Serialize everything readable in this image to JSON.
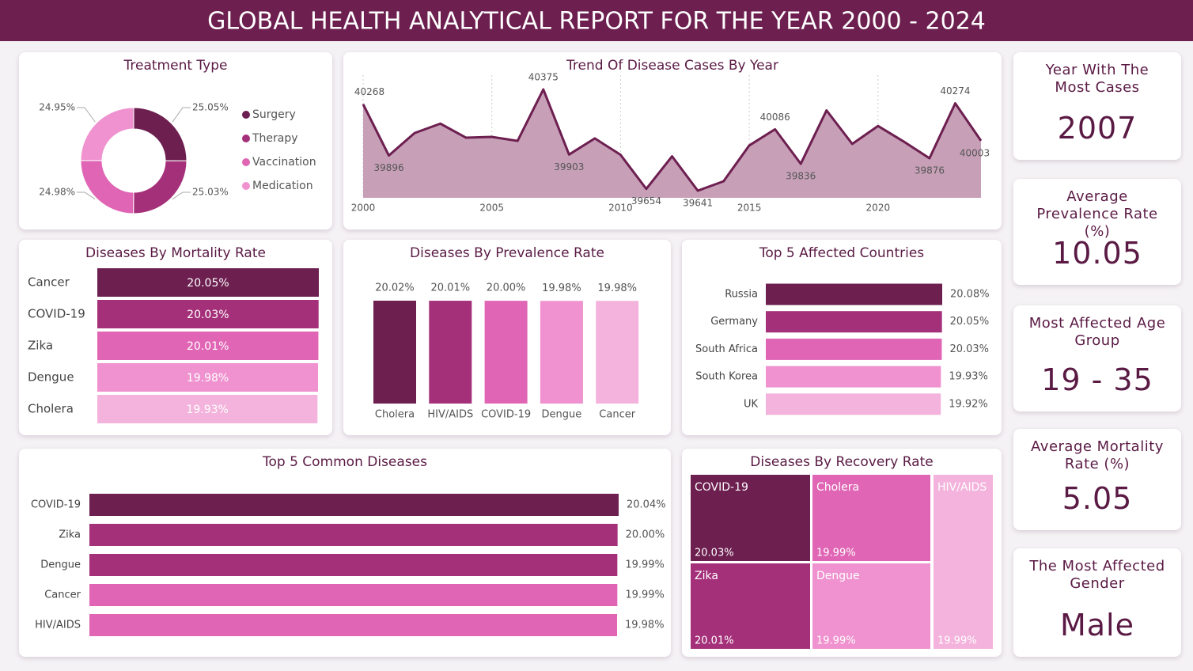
{
  "title": "GLOBAL HEALTH ANALYTICAL REPORT FOR THE YEAR 2000 - 2024",
  "chart_data": [
    {
      "type": "pie",
      "donut": true,
      "title": "Treatment Type",
      "categories": [
        "Surgery",
        "Therapy",
        "Vaccination",
        "Medication"
      ],
      "values": [
        25.05,
        25.03,
        24.98,
        24.95
      ],
      "value_labels": [
        "25.05%",
        "25.03%",
        "24.98%",
        "24.95%"
      ],
      "colors": [
        "#6d1f50",
        "#a5307a",
        "#e066b5",
        "#ef92cf"
      ]
    },
    {
      "type": "line",
      "area": true,
      "title": "Trend Of Disease Cases By Year",
      "x": [
        2000,
        2001,
        2002,
        2003,
        2004,
        2005,
        2006,
        2007,
        2008,
        2009,
        2010,
        2011,
        2012,
        2013,
        2014,
        2015,
        2016,
        2017,
        2018,
        2019,
        2020,
        2021,
        2022,
        2023,
        2024
      ],
      "values": [
        40268,
        39896,
        40059,
        40127,
        40025,
        40031,
        40002,
        40375,
        39903,
        40020,
        39901,
        39654,
        39890,
        39641,
        39709,
        39969,
        40086,
        39836,
        40223,
        39980,
        40110,
        39997,
        39876,
        40274,
        40003
      ],
      "value_labels": [
        "40268",
        "39896",
        null,
        null,
        null,
        null,
        null,
        "40375",
        "39903",
        null,
        null,
        "39654",
        null,
        "39641",
        null,
        null,
        "40086",
        "39836",
        null,
        null,
        null,
        null,
        "39876",
        "40274",
        "40003"
      ],
      "xlim": [
        2000,
        2024
      ],
      "xticks": [
        2000,
        2005,
        2010,
        2015,
        2020
      ],
      "grid": true,
      "color": "#6d1f50",
      "fill_color": "#c7a0b8"
    },
    {
      "type": "bar",
      "orientation": "horizontal",
      "label_position": "inside",
      "title": "Diseases By Mortality Rate",
      "categories": [
        "Cancer",
        "COVID-19",
        "Zika",
        "Dengue",
        "Cholera"
      ],
      "values": [
        20.05,
        20.03,
        20.01,
        19.98,
        19.93
      ],
      "value_labels": [
        "20.05%",
        "20.03%",
        "20.01%",
        "19.98%",
        "19.93%"
      ],
      "colors": [
        "#6d1f50",
        "#a5307a",
        "#e066b5",
        "#ef92cf",
        "#f4b3dc"
      ]
    },
    {
      "type": "bar",
      "orientation": "vertical",
      "label_position": "top",
      "title": "Diseases By Prevalence Rate",
      "categories": [
        "Cholera",
        "HIV/AIDS",
        "COVID-19",
        "Dengue",
        "Cancer"
      ],
      "values": [
        20.02,
        20.01,
        20.0,
        19.98,
        19.98
      ],
      "value_labels": [
        "20.02%",
        "20.01%",
        "20.00%",
        "19.98%",
        "19.98%"
      ],
      "colors": [
        "#6d1f50",
        "#a5307a",
        "#e066b5",
        "#ef92cf",
        "#f4b3dc"
      ]
    },
    {
      "type": "bar",
      "orientation": "horizontal",
      "label_position": "end",
      "title": "Top 5 Affected Countries",
      "categories": [
        "Russia",
        "Germany",
        "South Africa",
        "South Korea",
        "UK"
      ],
      "values": [
        20.08,
        20.05,
        20.03,
        19.93,
        19.92
      ],
      "value_labels": [
        "20.08%",
        "20.05%",
        "20.03%",
        "19.93%",
        "19.92%"
      ],
      "colors": [
        "#6d1f50",
        "#a5307a",
        "#e066b5",
        "#ef92cf",
        "#f4b3dc"
      ]
    },
    {
      "type": "bar",
      "orientation": "horizontal",
      "label_position": "end",
      "title": "Top 5 Common Diseases",
      "categories": [
        "COVID-19",
        "Zika",
        "Dengue",
        "Cancer",
        "HIV/AIDS"
      ],
      "values": [
        20.04,
        20.0,
        19.99,
        19.99,
        19.98
      ],
      "value_labels": [
        "20.04%",
        "20.00%",
        "19.99%",
        "19.99%",
        "19.98%"
      ],
      "colors": [
        "#6d1f50",
        "#a5307a",
        "#a5307a",
        "#e066b5",
        "#e066b5"
      ]
    },
    {
      "type": "treemap",
      "title": "Diseases By Recovery Rate",
      "categories": [
        "COVID-19",
        "Cholera",
        "Zika",
        "Dengue",
        "HIV/AIDS"
      ],
      "values": [
        20.03,
        19.99,
        20.01,
        19.99,
        19.99
      ],
      "value_labels": [
        "20.03%",
        "19.99%",
        "20.01%",
        "19.99%",
        "19.99%"
      ],
      "colors": [
        "#6d1f50",
        "#e066b5",
        "#a5307a",
        "#ef92cf",
        "#f4b3dc"
      ]
    }
  ],
  "cards": [
    {
      "title": "Year With The Most Cases",
      "value": 2007
    },
    {
      "title": "Average Prevalence Rate (%)",
      "value": 10.05
    },
    {
      "title": "Most Affected Age Group",
      "value": "19 - 35"
    },
    {
      "title": "Average Mortality Rate (%)",
      "value": 5.05
    },
    {
      "title": "The Most Affected Gender",
      "value": "Male"
    }
  ]
}
